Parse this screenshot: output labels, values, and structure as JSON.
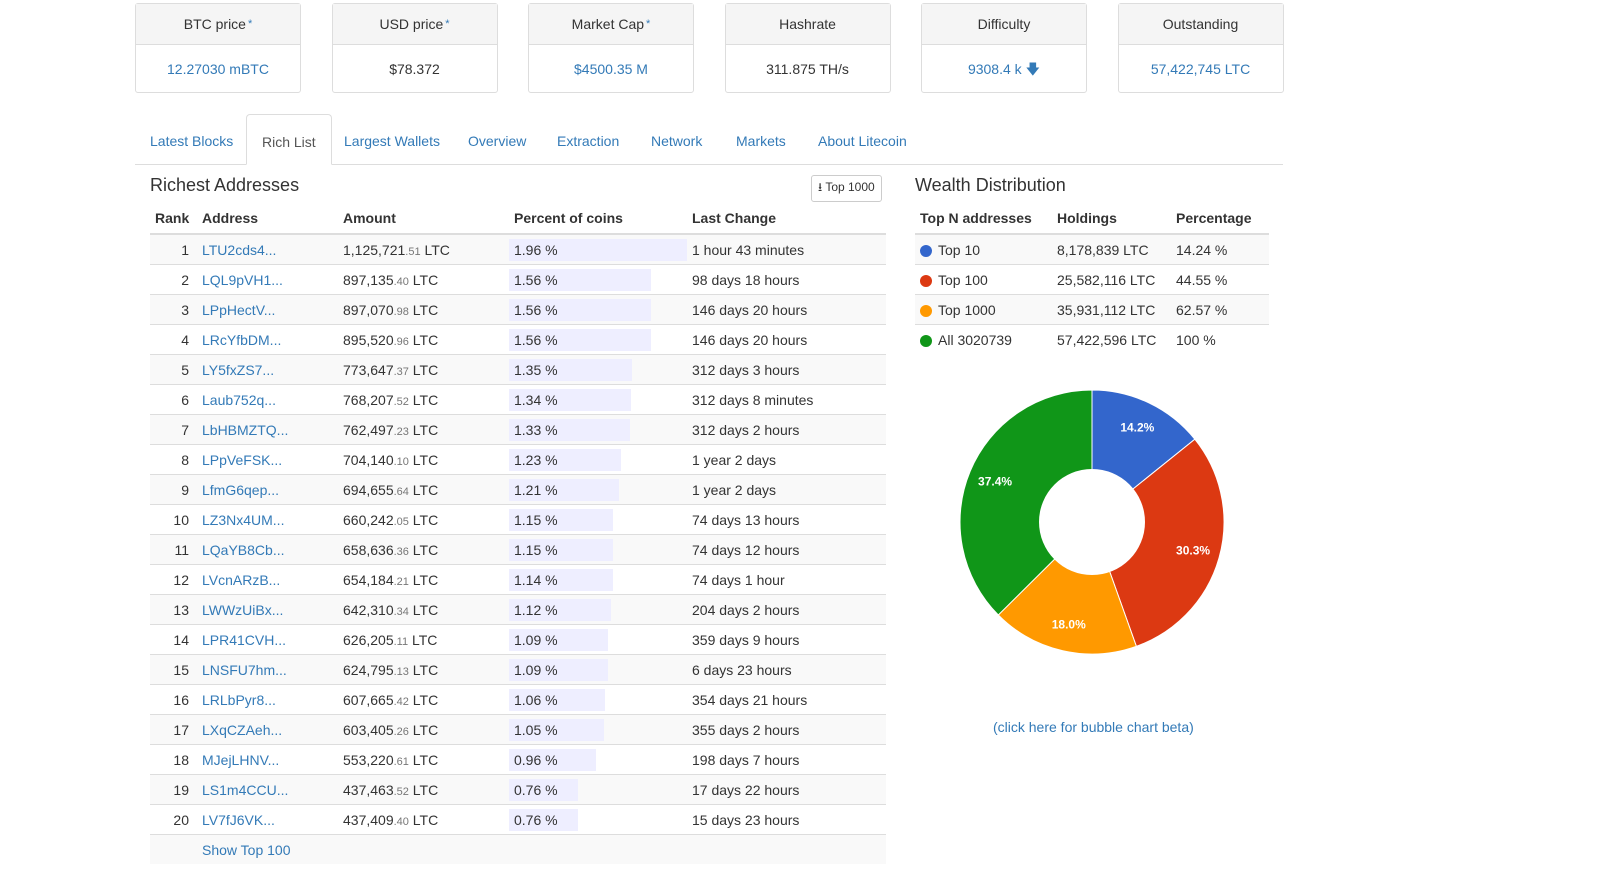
{
  "stats": [
    {
      "label": "BTC price",
      "star": "*",
      "value": "12.27030 mBTC",
      "link": true
    },
    {
      "label": "USD price",
      "star": "*",
      "value": "$78.372",
      "link": false
    },
    {
      "label": "Market Cap",
      "star": "*",
      "value": "$4500.35 M",
      "link": true
    },
    {
      "label": "Hashrate",
      "star": "",
      "value": "311.875 TH/s",
      "link": false
    },
    {
      "label": "Difficulty",
      "star": "",
      "value": "9308.4 k",
      "link": true,
      "arrow": "🡇"
    },
    {
      "label": "Outstanding",
      "star": "",
      "value": "57,422,745 LTC",
      "link": true
    }
  ],
  "tabs": [
    "Latest Blocks",
    "Rich List",
    "Largest Wallets",
    "Overview",
    "Extraction",
    "Network",
    "Markets",
    "About Litecoin"
  ],
  "active_tab": "Rich List",
  "rich": {
    "title": "Richest Addresses",
    "top_button": "Top 1000",
    "headers": [
      "Rank",
      "Address",
      "Amount",
      "Percent of coins",
      "Last Change"
    ],
    "rows": [
      {
        "rank": "1",
        "address": "LTU2cds4...",
        "amount": "1,125,721",
        "dec": ".51",
        "unit": "LTC",
        "pct": "1.96 %",
        "pv": 1.96,
        "change": "1 hour 43 minutes"
      },
      {
        "rank": "2",
        "address": "LQL9pVH1...",
        "amount": "897,135",
        "dec": ".40",
        "unit": "LTC",
        "pct": "1.56 %",
        "pv": 1.56,
        "change": "98 days 18 hours"
      },
      {
        "rank": "3",
        "address": "LPpHectV...",
        "amount": "897,070",
        "dec": ".98",
        "unit": "LTC",
        "pct": "1.56 %",
        "pv": 1.56,
        "change": "146 days 20 hours"
      },
      {
        "rank": "4",
        "address": "LRcYfbDM...",
        "amount": "895,520",
        "dec": ".96",
        "unit": "LTC",
        "pct": "1.56 %",
        "pv": 1.56,
        "change": "146 days 20 hours"
      },
      {
        "rank": "5",
        "address": "LY5fxZS7...",
        "amount": "773,647",
        "dec": ".37",
        "unit": "LTC",
        "pct": "1.35 %",
        "pv": 1.35,
        "change": "312 days 3 hours"
      },
      {
        "rank": "6",
        "address": "Laub752q...",
        "amount": "768,207",
        "dec": ".52",
        "unit": "LTC",
        "pct": "1.34 %",
        "pv": 1.34,
        "change": "312 days 8 minutes"
      },
      {
        "rank": "7",
        "address": "LbHBMZTQ...",
        "amount": "762,497",
        "dec": ".23",
        "unit": "LTC",
        "pct": "1.33 %",
        "pv": 1.33,
        "change": "312 days 2 hours"
      },
      {
        "rank": "8",
        "address": "LPpVeFSK...",
        "amount": "704,140",
        "dec": ".10",
        "unit": "LTC",
        "pct": "1.23 %",
        "pv": 1.23,
        "change": "1 year 2 days"
      },
      {
        "rank": "9",
        "address": "LfmG6qep...",
        "amount": "694,655",
        "dec": ".64",
        "unit": "LTC",
        "pct": "1.21 %",
        "pv": 1.21,
        "change": "1 year 2 days"
      },
      {
        "rank": "10",
        "address": "LZ3Nx4UM...",
        "amount": "660,242",
        "dec": ".05",
        "unit": "LTC",
        "pct": "1.15 %",
        "pv": 1.15,
        "change": "74 days 13 hours"
      },
      {
        "rank": "11",
        "address": "LQaYB8Cb...",
        "amount": "658,636",
        "dec": ".36",
        "unit": "LTC",
        "pct": "1.15 %",
        "pv": 1.15,
        "change": "74 days 12 hours"
      },
      {
        "rank": "12",
        "address": "LVcnARzB...",
        "amount": "654,184",
        "dec": ".21",
        "unit": "LTC",
        "pct": "1.14 %",
        "pv": 1.14,
        "change": "74 days 1 hour"
      },
      {
        "rank": "13",
        "address": "LWWzUiBx...",
        "amount": "642,310",
        "dec": ".34",
        "unit": "LTC",
        "pct": "1.12 %",
        "pv": 1.12,
        "change": "204 days 2 hours"
      },
      {
        "rank": "14",
        "address": "LPR41CVH...",
        "amount": "626,205",
        "dec": ".11",
        "unit": "LTC",
        "pct": "1.09 %",
        "pv": 1.09,
        "change": "359 days 9 hours"
      },
      {
        "rank": "15",
        "address": "LNSFU7hm...",
        "amount": "624,795",
        "dec": ".13",
        "unit": "LTC",
        "pct": "1.09 %",
        "pv": 1.09,
        "change": "6 days 23 hours"
      },
      {
        "rank": "16",
        "address": "LRLbPyr8...",
        "amount": "607,665",
        "dec": ".42",
        "unit": "LTC",
        "pct": "1.06 %",
        "pv": 1.06,
        "change": "354 days 21 hours"
      },
      {
        "rank": "17",
        "address": "LXqCZAeh...",
        "amount": "603,405",
        "dec": ".26",
        "unit": "LTC",
        "pct": "1.05 %",
        "pv": 1.05,
        "change": "355 days 2 hours"
      },
      {
        "rank": "18",
        "address": "MJejLHNV...",
        "amount": "553,220",
        "dec": ".61",
        "unit": "LTC",
        "pct": "0.96 %",
        "pv": 0.96,
        "change": "198 days 7 hours"
      },
      {
        "rank": "19",
        "address": "LS1m4CCU...",
        "amount": "437,463",
        "dec": ".52",
        "unit": "LTC",
        "pct": "0.76 %",
        "pv": 0.76,
        "change": "17 days 22 hours"
      },
      {
        "rank": "20",
        "address": "LV7fJ6VK...",
        "amount": "437,409",
        "dec": ".40",
        "unit": "LTC",
        "pct": "0.76 %",
        "pv": 0.76,
        "change": "15 days 23 hours"
      }
    ],
    "show_more": "Show Top 100"
  },
  "wealth": {
    "title": "Wealth Distribution",
    "headers": [
      "Top N addresses",
      "Holdings",
      "Percentage"
    ],
    "rows": [
      {
        "label": "Top 10",
        "holdings": "8,178,839 LTC",
        "pct": "14.24 %",
        "color": "#3366cc"
      },
      {
        "label": "Top 100",
        "holdings": "25,582,116 LTC",
        "pct": "44.55 %",
        "color": "#dc3912"
      },
      {
        "label": "Top 1000",
        "holdings": "35,931,112 LTC",
        "pct": "62.57 %",
        "color": "#ff9900"
      },
      {
        "label": "All 3020739",
        "holdings": "57,422,596 LTC",
        "pct": "100 %",
        "color": "#109618"
      }
    ],
    "bubble_link": "(click here for bubble chart beta)"
  },
  "chart_data": {
    "type": "pie",
    "categories": [
      "Top 10",
      "Top 100",
      "Top 1000",
      "All 3020739"
    ],
    "values": [
      14.2,
      30.3,
      18.0,
      37.4
    ],
    "labels": [
      "14.2%",
      "30.3%",
      "18.0%",
      "37.4%"
    ],
    "colors": [
      "#3366cc",
      "#dc3912",
      "#ff9900",
      "#109618"
    ],
    "donut": true
  }
}
